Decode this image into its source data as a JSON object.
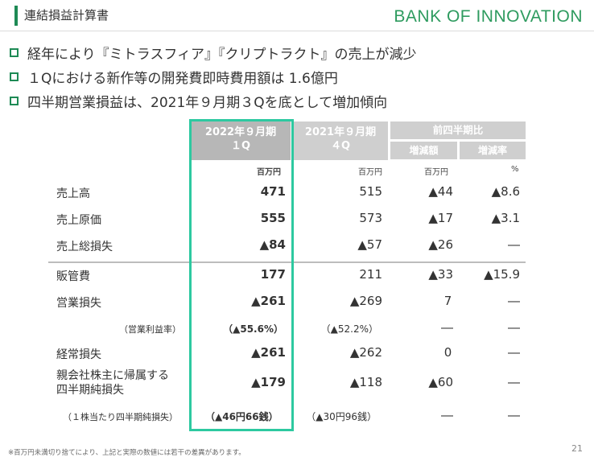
{
  "header": {
    "title": "連結損益計算書",
    "logo": "BANK OF INNOVATION",
    "accent_color": "#1e8a55",
    "logo_color": "#2e9b5f"
  },
  "bullets": [
    "経年により『ミトラスフィア』『クリプトラクト』の売上が減少",
    "１Qにおける新作等の開発費即時費用額は 1.6億円",
    "四半期営業損益は、2021年９月期３Qを底として増加傾向"
  ],
  "table": {
    "headers": {
      "current_line1": "2022年９月期",
      "current_line2": "１Q",
      "previous_line1": "2021年９月期",
      "previous_line2": "４Q",
      "qoq": "前四半期比",
      "qoq_change": "増減額",
      "qoq_rate": "増減率"
    },
    "units": {
      "current": "百万円",
      "previous": "百万円",
      "change": "百万円",
      "rate": "%"
    },
    "rows": [
      {
        "label": "売上高",
        "current": "471",
        "previous": "515",
        "change": "▲44",
        "rate": "▲8.6"
      },
      {
        "label": "売上原価",
        "current": "555",
        "previous": "573",
        "change": "▲17",
        "rate": "▲3.1"
      },
      {
        "label": "売上総損失",
        "current": "▲84",
        "previous": "▲57",
        "change": "▲26",
        "rate": "―"
      },
      {
        "label": "販管費",
        "current": "177",
        "previous": "211",
        "change": "▲33",
        "rate": "▲15.9"
      },
      {
        "label": "営業損失",
        "current": "▲261",
        "previous": "▲269",
        "change": "7",
        "rate": "―"
      },
      {
        "label": "（営業利益率）",
        "current": "（▲55.6%）",
        "previous": "（▲52.2%）",
        "change": "―",
        "rate": "―"
      },
      {
        "label": "経常損失",
        "current": "▲261",
        "previous": "▲262",
        "change": "0",
        "rate": "―"
      },
      {
        "label_line1": "親会社株主に帰属する",
        "label_line2": "四半期純損失",
        "current": "▲179",
        "previous": "▲118",
        "change": "▲60",
        "rate": "―"
      },
      {
        "label": "（１株当たり四半期純損失）",
        "current": "（▲46円66銭）",
        "previous": "（▲30円96銭）",
        "change": "―",
        "rate": "―"
      }
    ],
    "highlight_color": "#2dc9a0"
  },
  "footnote": "※百万円未満切り捨てにより、上記と実際の数値には若干の差異があります。",
  "page_number": "21"
}
